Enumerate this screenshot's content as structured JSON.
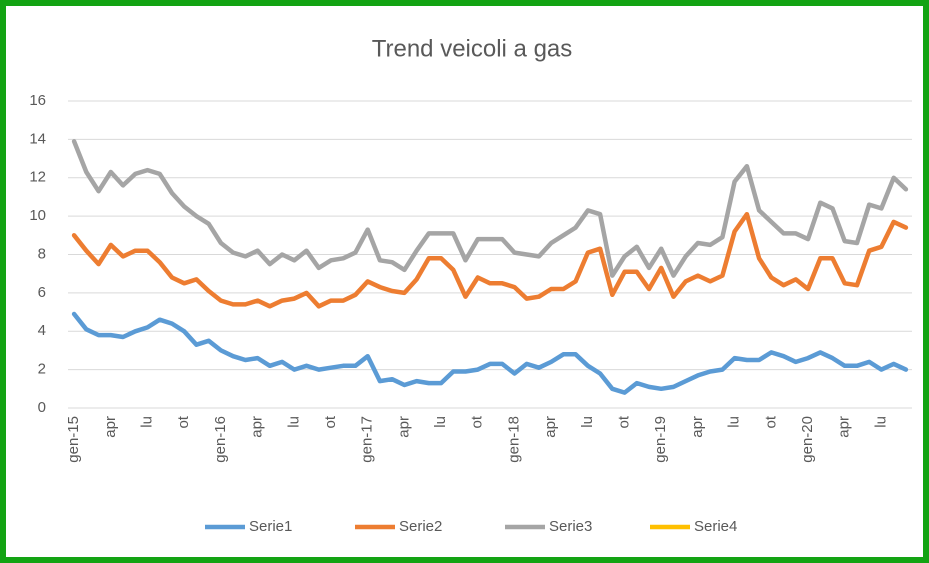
{
  "chart_data": {
    "type": "line",
    "title": "Trend veicoli a gas",
    "categories": [
      "gen-15",
      null,
      null,
      "apr",
      null,
      null,
      "lu",
      null,
      null,
      "ot",
      null,
      null,
      "gen-16",
      null,
      null,
      "apr",
      null,
      null,
      "lu",
      null,
      null,
      "ot",
      null,
      null,
      "gen-17",
      null,
      null,
      "apr",
      null,
      null,
      "lu",
      null,
      null,
      "ot",
      null,
      null,
      "gen-18",
      null,
      null,
      "apr",
      null,
      null,
      "lu",
      null,
      null,
      "ot",
      null,
      null,
      "gen-19",
      null,
      null,
      "apr",
      null,
      null,
      "lu",
      null,
      null,
      "ot",
      null,
      null,
      "gen-20",
      null,
      null,
      "apr",
      null,
      null,
      "lu",
      null,
      null
    ],
    "series": [
      {
        "name": "Serie1",
        "color": "#5b9bd5",
        "values": [
          4.9,
          4.1,
          3.8,
          3.8,
          3.7,
          4.0,
          4.2,
          4.6,
          4.4,
          4.0,
          3.3,
          3.5,
          3.0,
          2.7,
          2.5,
          2.6,
          2.2,
          2.4,
          2.0,
          2.2,
          2.0,
          2.1,
          2.2,
          2.2,
          2.7,
          1.4,
          1.5,
          1.2,
          1.4,
          1.3,
          1.3,
          1.9,
          1.9,
          2.0,
          2.3,
          2.3,
          1.8,
          2.3,
          2.1,
          2.4,
          2.8,
          2.8,
          2.2,
          1.8,
          1.0,
          0.8,
          1.3,
          1.1,
          1.0,
          1.1,
          1.4,
          1.7,
          1.9,
          2.0,
          2.6,
          2.5,
          2.5,
          2.9,
          2.7,
          2.4,
          2.6,
          2.9,
          2.6,
          2.2,
          2.2,
          2.4,
          2.0,
          2.3,
          2.0
        ]
      },
      {
        "name": "Serie2",
        "color": "#ed7d31",
        "values": [
          9.0,
          8.2,
          7.5,
          8.5,
          7.9,
          8.2,
          8.2,
          7.6,
          6.8,
          6.5,
          6.7,
          6.1,
          5.6,
          5.4,
          5.4,
          5.6,
          5.3,
          5.6,
          5.7,
          6.0,
          5.3,
          5.6,
          5.6,
          5.9,
          6.6,
          6.3,
          6.1,
          6.0,
          6.7,
          7.8,
          7.8,
          7.2,
          5.8,
          6.8,
          6.5,
          6.5,
          6.3,
          5.7,
          5.8,
          6.2,
          6.2,
          6.6,
          8.1,
          8.3,
          5.9,
          7.1,
          7.1,
          6.2,
          7.3,
          5.8,
          6.6,
          6.9,
          6.6,
          6.9,
          9.2,
          10.1,
          7.8,
          6.8,
          6.4,
          6.7,
          6.2,
          7.8,
          7.8,
          6.5,
          6.4,
          8.2,
          8.4,
          9.7,
          9.4
        ]
      },
      {
        "name": "Serie3",
        "color": "#a5a5a5",
        "values": [
          13.9,
          12.3,
          11.3,
          12.3,
          11.6,
          12.2,
          12.4,
          12.2,
          11.2,
          10.5,
          10.0,
          9.6,
          8.6,
          8.1,
          7.9,
          8.2,
          7.5,
          8.0,
          7.7,
          8.2,
          7.3,
          7.7,
          7.8,
          8.1,
          9.3,
          7.7,
          7.6,
          7.2,
          8.2,
          9.1,
          9.1,
          9.1,
          7.7,
          8.8,
          8.8,
          8.8,
          8.1,
          8.0,
          7.9,
          8.6,
          9.0,
          9.4,
          10.3,
          10.1,
          6.9,
          7.9,
          8.4,
          7.3,
          8.3,
          6.9,
          7.9,
          8.6,
          8.5,
          8.9,
          11.8,
          12.6,
          10.3,
          9.7,
          9.1,
          9.1,
          8.8,
          10.7,
          10.4,
          8.7,
          8.6,
          10.6,
          10.4,
          12.0,
          11.4
        ]
      },
      {
        "name": "Serie4",
        "color": "#ffc000",
        "values": [
          null,
          null,
          null,
          null,
          null,
          null,
          null,
          null,
          null,
          null,
          null,
          null,
          null,
          null,
          null,
          null,
          null,
          null,
          null,
          null,
          null,
          null,
          null,
          null,
          null,
          null,
          null,
          null,
          null,
          null,
          null,
          null,
          null,
          null,
          null,
          null,
          null,
          null,
          null,
          null,
          null,
          null,
          null,
          null,
          null,
          null,
          null,
          null,
          null,
          null,
          null,
          null,
          null,
          null,
          null,
          null,
          null,
          null,
          null,
          null,
          null,
          null,
          null,
          null,
          null,
          null,
          null,
          null,
          null
        ]
      }
    ],
    "ylim": [
      0,
      16
    ],
    "yticks": [
      0,
      2,
      4,
      6,
      8,
      10,
      12,
      14,
      16
    ],
    "grid": true,
    "legend": "bottom"
  }
}
